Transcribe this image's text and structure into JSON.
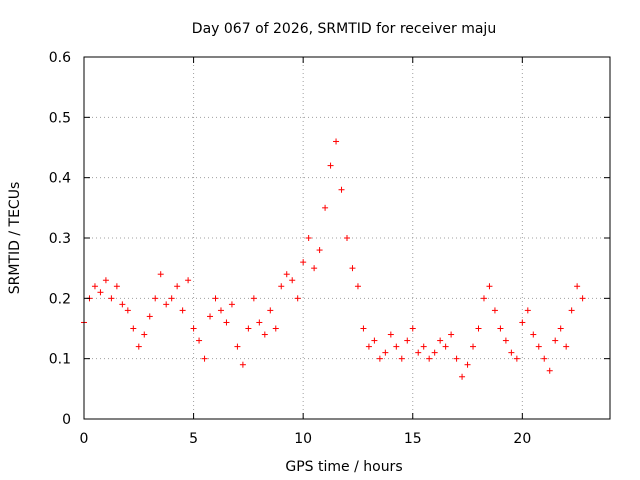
{
  "chart_data": {
    "type": "scatter",
    "title": "Day 067 of 2026, SRMTID for receiver maju",
    "xlabel": "GPS time / hours",
    "ylabel": "SRMTID / TECUs",
    "xlim": [
      0,
      24
    ],
    "ylim": [
      0,
      0.6
    ],
    "xticks": [
      0,
      5,
      10,
      15,
      20
    ],
    "xtick_labels": [
      "0",
      "5",
      "10",
      "15",
      "20"
    ],
    "yticks": [
      0,
      0.1,
      0.2,
      0.3,
      0.4,
      0.5,
      0.6
    ],
    "ytick_labels": [
      "0",
      "0.1",
      "0.2",
      "0.3",
      "0.4",
      "0.5",
      "0.6"
    ],
    "grid": true,
    "marker": "plus",
    "marker_color": "#ff0000",
    "series": [
      {
        "name": "SRMTID",
        "x": [
          0.0,
          0.25,
          0.5,
          0.75,
          1.0,
          1.25,
          1.5,
          1.75,
          2.0,
          2.25,
          2.5,
          2.75,
          3.0,
          3.25,
          3.5,
          3.75,
          4.0,
          4.25,
          4.5,
          4.75,
          5.0,
          5.25,
          5.5,
          5.75,
          6.0,
          6.25,
          6.5,
          6.75,
          7.0,
          7.25,
          7.5,
          7.75,
          8.0,
          8.25,
          8.5,
          8.75,
          9.0,
          9.25,
          9.5,
          9.75,
          10.0,
          10.25,
          10.5,
          10.75,
          11.0,
          11.25,
          11.5,
          11.75,
          12.0,
          12.25,
          12.5,
          12.75,
          13.0,
          13.25,
          13.5,
          13.75,
          14.0,
          14.25,
          14.5,
          14.75,
          15.0,
          15.25,
          15.5,
          15.75,
          16.0,
          16.25,
          16.5,
          16.75,
          17.0,
          17.25,
          17.5,
          17.75,
          18.0,
          18.25,
          18.5,
          18.75,
          19.0,
          19.25,
          19.5,
          19.75,
          20.0,
          20.25,
          20.5,
          20.75,
          21.0,
          21.25,
          21.5,
          21.75,
          22.0,
          22.25,
          22.5,
          22.75
        ],
        "y": [
          0.16,
          0.2,
          0.22,
          0.21,
          0.23,
          0.2,
          0.22,
          0.19,
          0.18,
          0.15,
          0.12,
          0.14,
          0.17,
          0.2,
          0.24,
          0.19,
          0.2,
          0.22,
          0.18,
          0.23,
          0.15,
          0.13,
          0.1,
          0.17,
          0.2,
          0.18,
          0.16,
          0.19,
          0.12,
          0.09,
          0.15,
          0.2,
          0.16,
          0.14,
          0.18,
          0.15,
          0.22,
          0.24,
          0.23,
          0.2,
          0.26,
          0.3,
          0.25,
          0.28,
          0.35,
          0.42,
          0.46,
          0.38,
          0.3,
          0.25,
          0.22,
          0.15,
          0.12,
          0.13,
          0.1,
          0.11,
          0.14,
          0.12,
          0.1,
          0.13,
          0.15,
          0.11,
          0.12,
          0.1,
          0.11,
          0.13,
          0.12,
          0.14,
          0.1,
          0.07,
          0.09,
          0.12,
          0.15,
          0.2,
          0.22,
          0.18,
          0.15,
          0.13,
          0.11,
          0.1,
          0.16,
          0.18,
          0.14,
          0.12,
          0.1,
          0.08,
          0.13,
          0.15,
          0.12,
          0.18,
          0.22,
          0.2
        ]
      }
    ]
  }
}
